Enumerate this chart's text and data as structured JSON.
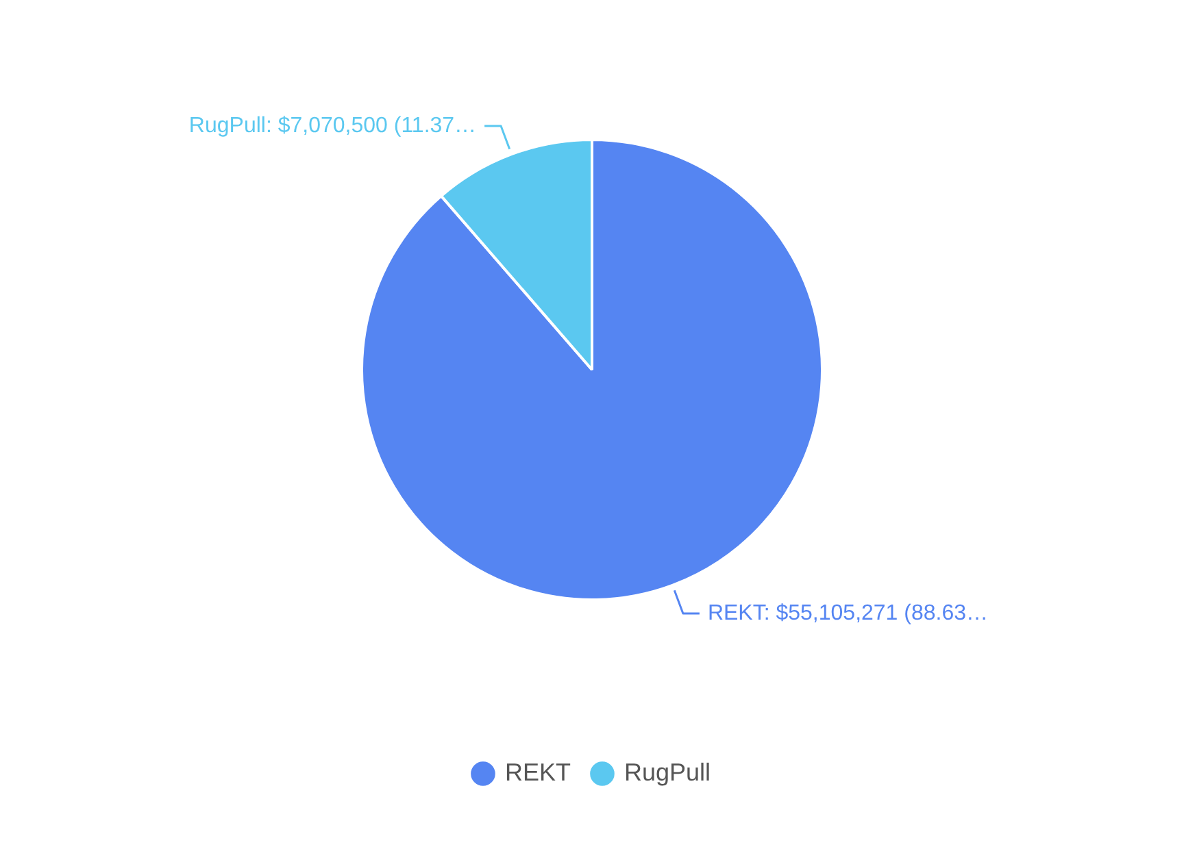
{
  "chart_data": {
    "type": "pie",
    "categories": [
      "REKT",
      "RugPull"
    ],
    "values": [
      55105271,
      7070500
    ],
    "colors": [
      "#5585f2",
      "#5bc8f0"
    ],
    "value_labels": [
      "REKT: $55,105,271 (88.63…",
      "RugPull: $7,070,500 (11.37…"
    ],
    "legend": "bottom"
  }
}
